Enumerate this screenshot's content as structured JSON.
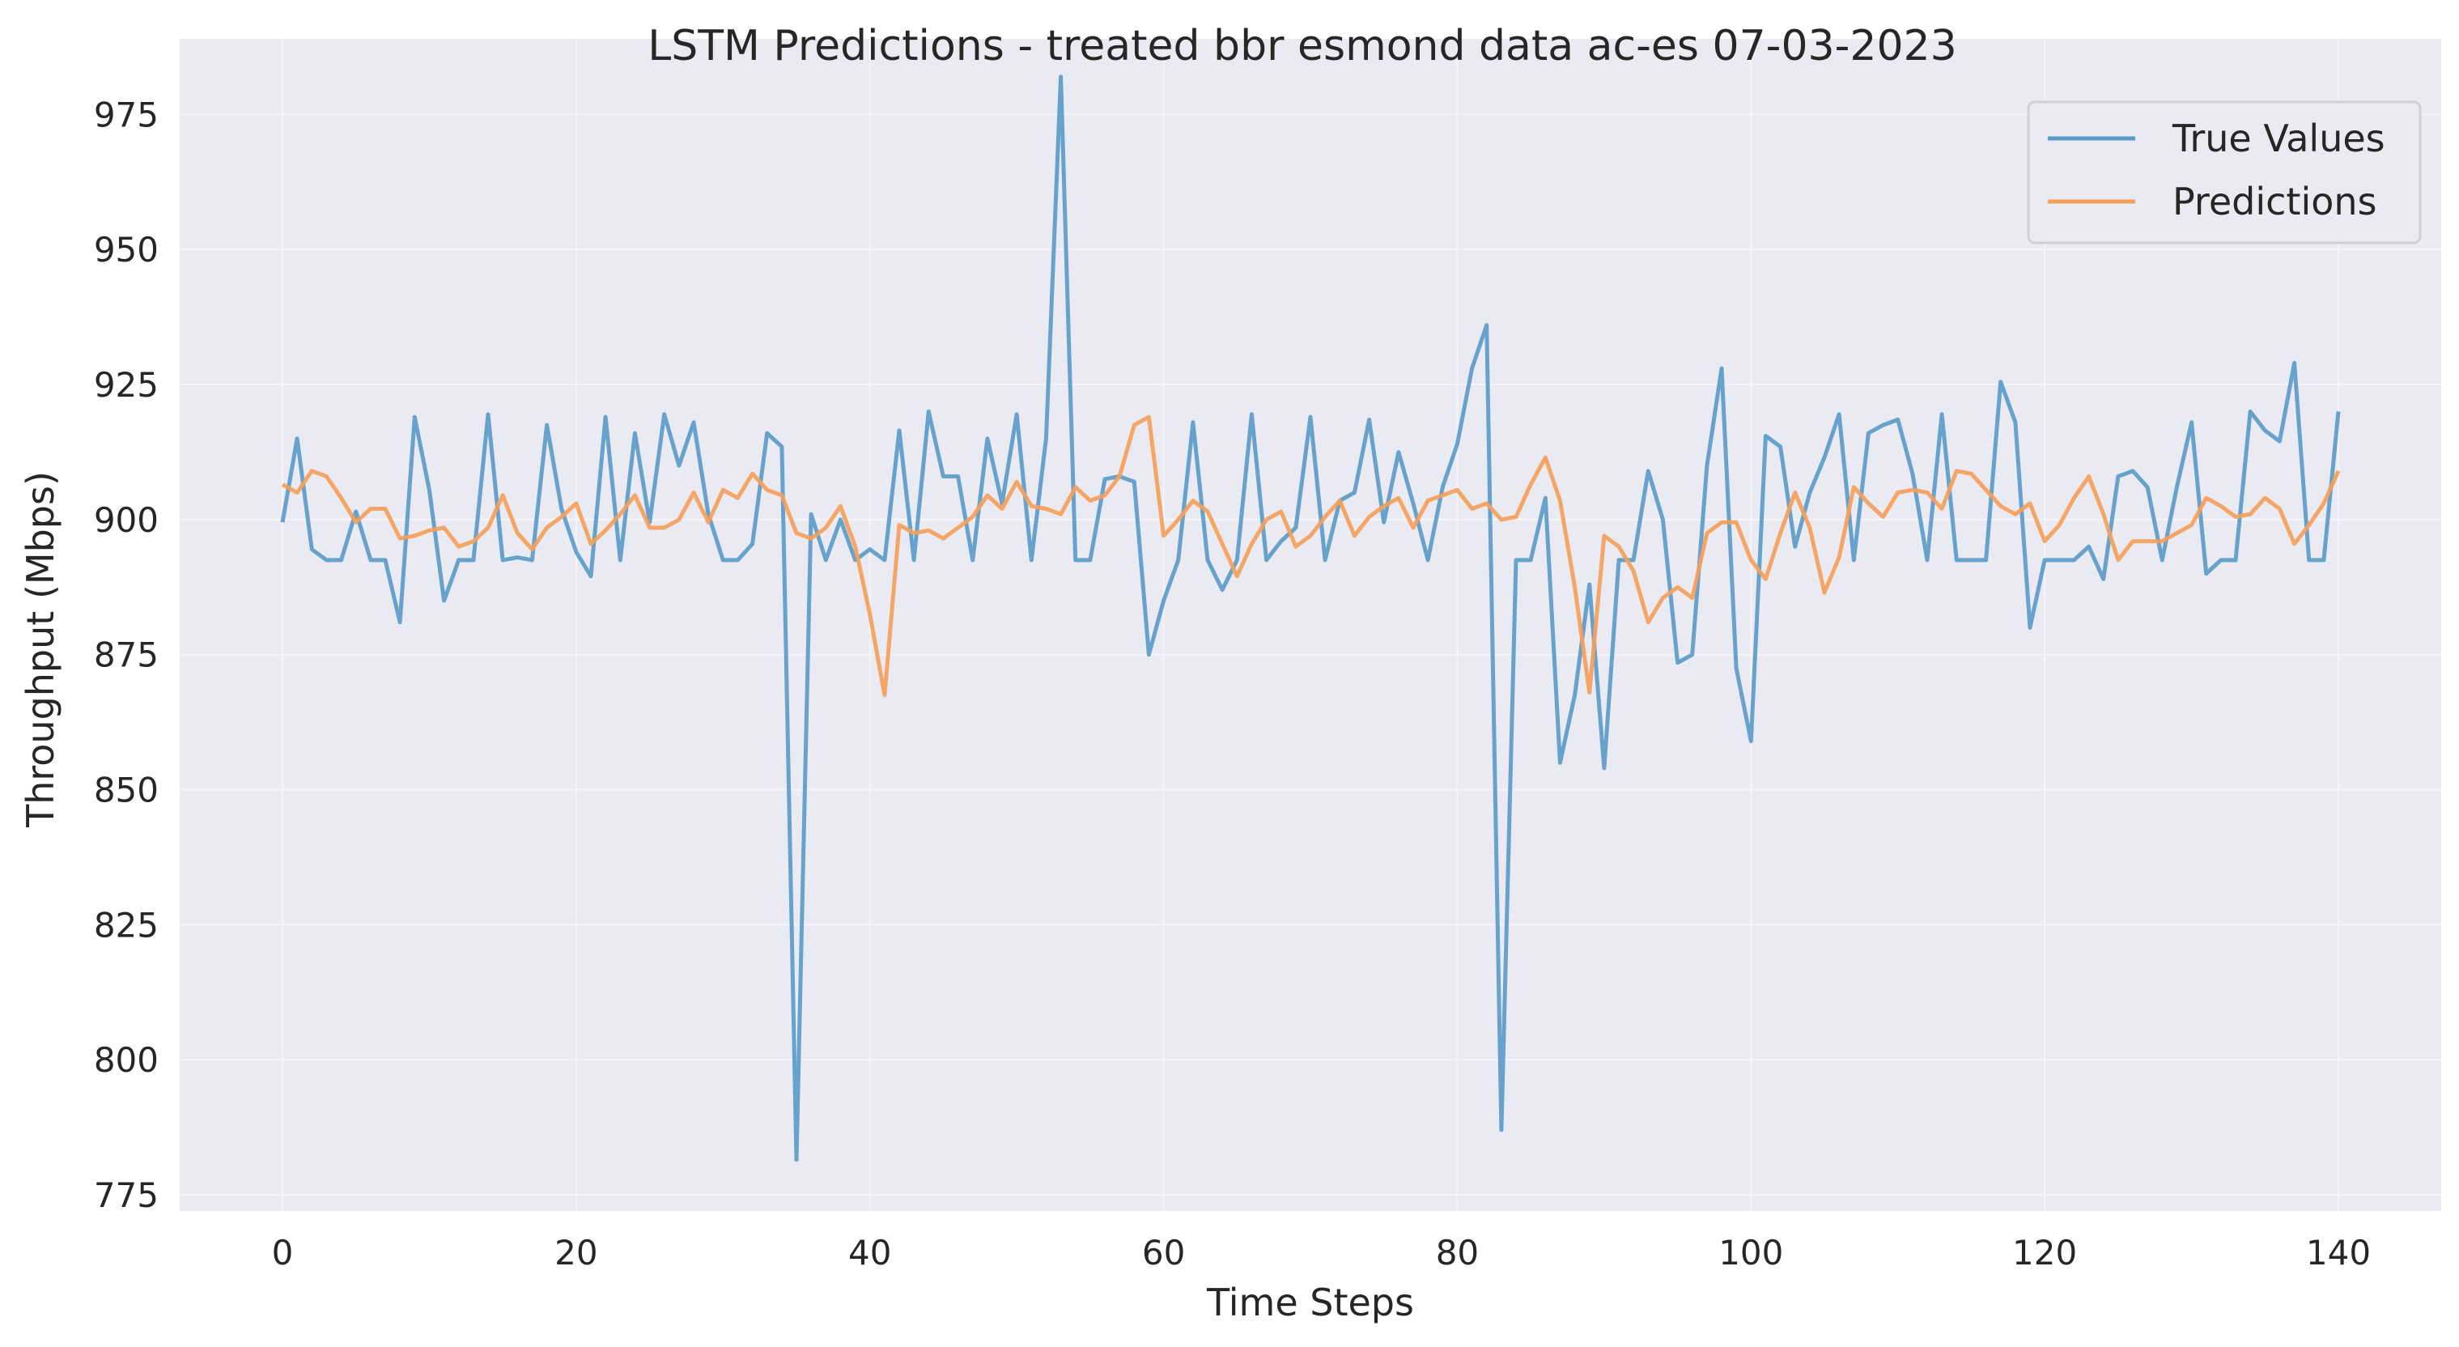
{
  "chart_data": {
    "type": "line",
    "title": "LSTM Predictions - treated bbr esmond data ac-es 07-03-2023",
    "xlabel": "Time Steps",
    "ylabel": "Throughput (Mbps)",
    "xlim": [
      -7,
      147
    ],
    "ylim": [
      772,
      989
    ],
    "xticks": [
      0,
      20,
      40,
      60,
      80,
      100,
      120,
      140
    ],
    "yticks": [
      775,
      800,
      825,
      850,
      875,
      900,
      925,
      950,
      975
    ],
    "grid": true,
    "legend": "top-right",
    "colors": {
      "plot_bg": "#EAEAF2",
      "grid": "#F5F5F9",
      "true_values": "#5B9BC9",
      "predictions": "#F5A05A"
    },
    "series": [
      {
        "name": "True Values",
        "values": [
          899.5,
          915,
          894.5,
          892.5,
          892.5,
          901.5,
          892.5,
          892.5,
          881,
          919,
          905.5,
          885,
          892.5,
          892.5,
          919.5,
          892.5,
          893,
          892.5,
          917.5,
          902,
          894,
          889.5,
          919,
          892.5,
          916,
          899.5,
          919.5,
          910,
          918,
          901,
          892.5,
          892.5,
          895.5,
          916,
          913.5,
          781.5,
          901,
          892.5,
          900,
          892.5,
          894.5,
          892.5,
          916.5,
          892.5,
          920,
          908,
          908,
          892.5,
          915,
          903,
          919.5,
          892.5,
          915,
          982,
          892.5,
          892.5,
          907.5,
          908,
          907,
          875,
          885,
          892.5,
          918,
          892.5,
          887,
          892.5,
          919.5,
          892.5,
          896,
          898.5,
          919,
          892.5,
          903.5,
          905,
          918.5,
          899.5,
          912.5,
          903,
          892.5,
          906,
          914,
          928,
          936,
          787,
          892.5,
          892.5,
          904,
          855,
          867.5,
          888,
          854,
          892.5,
          892.5,
          909,
          900,
          873.5,
          875,
          910,
          928,
          872.5,
          859,
          915.5,
          913.5,
          895,
          905,
          911.5,
          919.5,
          892.5,
          916,
          917.5,
          918.5,
          908.5,
          892.5,
          919.5,
          892.5,
          892.5,
          892.5,
          925.5,
          918,
          880,
          892.5,
          892.5,
          892.5,
          895,
          889,
          908,
          909,
          906,
          892.5,
          906,
          918,
          890,
          892.5,
          892.5,
          920,
          916.5,
          914.5,
          929,
          892.5,
          892.5,
          920
        ]
      },
      {
        "name": "Predictions",
        "values": [
          906.5,
          905,
          909,
          908,
          904,
          899.5,
          902,
          902,
          896.5,
          897,
          898,
          898.5,
          895,
          896,
          898.5,
          904.5,
          897.5,
          894.5,
          898.5,
          900.5,
          903,
          895.5,
          898,
          901,
          904.5,
          898.5,
          898.5,
          900,
          905,
          899.5,
          905.5,
          904,
          908.5,
          905.5,
          904.5,
          897.5,
          896.5,
          898.5,
          902.5,
          895,
          882.5,
          867.5,
          899,
          897.5,
          898,
          896.5,
          898.5,
          900.5,
          904.5,
          902,
          907,
          902.5,
          902,
          901,
          906,
          903.5,
          904.5,
          908,
          917.5,
          919,
          897,
          900,
          903.5,
          901.5,
          895.5,
          889.5,
          895.5,
          900,
          901.5,
          895,
          897,
          900.5,
          903.5,
          897,
          900.5,
          902.5,
          904,
          898.5,
          903.5,
          904.5,
          905.5,
          902,
          903,
          900,
          900.5,
          906.5,
          911.5,
          903.5,
          887.5,
          868,
          897,
          895,
          890.5,
          881,
          885.5,
          887.5,
          885.5,
          897.5,
          899.5,
          899.5,
          892.5,
          889,
          897.5,
          905,
          898.5,
          886.5,
          893,
          906,
          903,
          900.5,
          905,
          905.5,
          905,
          902,
          909,
          908.5,
          905.5,
          902.5,
          901,
          903,
          896,
          899,
          904,
          908,
          901,
          892.5,
          896,
          896,
          896,
          897.5,
          899,
          904,
          902.5,
          900.5,
          901,
          904,
          902,
          895.5,
          899,
          903,
          909
        ]
      }
    ]
  }
}
